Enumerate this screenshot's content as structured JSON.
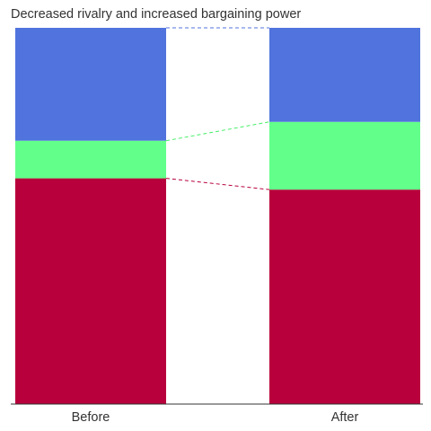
{
  "chart_data": {
    "type": "bar",
    "stacked": true,
    "title": "Decreased rivalry and increased bargaining power",
    "categories": [
      "Before",
      "After"
    ],
    "series": [
      {
        "values": [
          0.6,
          0.57
        ],
        "color": "#b8003c"
      },
      {
        "values": [
          0.1,
          0.18
        ],
        "color": "#62ff8a"
      },
      {
        "values": [
          0.3,
          0.25
        ],
        "color": "#5073dd"
      }
    ],
    "ylim": [
      0,
      1
    ],
    "grid": false,
    "legend": "none",
    "connector_colors": [
      "#b8003c",
      "#44ee66",
      "#5073dd"
    ]
  }
}
